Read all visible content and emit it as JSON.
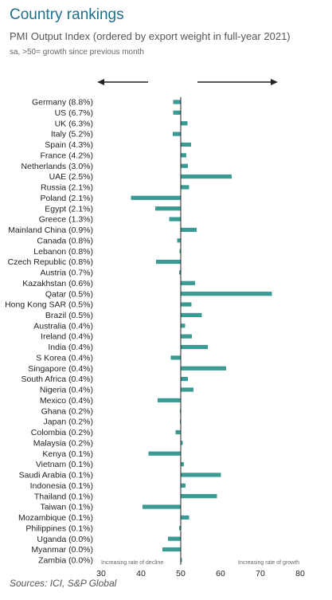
{
  "header": {
    "title": "Country rankings",
    "subtitle": "PMI Output Index (ordered by export weight in full-year 2021)",
    "note": "sa, >50= growth since previous month"
  },
  "footer": {
    "source": "Sources: ICI, S&P Global"
  },
  "colors": {
    "bar": "#3a9a94",
    "axis": "#222222",
    "title": "#1d6f8c"
  },
  "chart_data": {
    "type": "bar",
    "orientation": "horizontal",
    "baseline": 50,
    "xlim": [
      30,
      80
    ],
    "xticks": [
      "30",
      "40",
      "50",
      "60",
      "70",
      "80"
    ],
    "annotations": {
      "left": "Increasing rate of decline",
      "right": "Increasing rate of growth"
    },
    "categories": [
      "Germany (8.8%)",
      "US (6.7%)",
      "UK (6.3%)",
      "Italy (5.2%)",
      "Spain (4.3%)",
      "France (4.2%)",
      "Netherlands (3.0%)",
      "UAE (2.5%)",
      "Russia (2.1%)",
      "Poland (2.1%)",
      "Egypt (2.1%)",
      "Greece (1.3%)",
      "Mainland China (0.9%)",
      "Canada (0.8%)",
      "Lebanon (0.8%)",
      "Czech Republic (0.8%)",
      "Austria (0.7%)",
      "Kazakhstan (0.6%)",
      "Qatar (0.5%)",
      "Hong Kong SAR (0.5%)",
      "Brazil (0.5%)",
      "Australia (0.4%)",
      "Ireland (0.4%)",
      "India (0.4%)",
      "S Korea (0.4%)",
      "Singapore (0.4%)",
      "South Africa (0.4%)",
      "Nigeria (0.4%)",
      "Mexico (0.4%)",
      "Ghana (0.2%)",
      "Japan (0.2%)",
      "Colombia (0.2%)",
      "Malaysia (0.2%)",
      "Kenya (0.1%)",
      "Vietnam (0.1%)",
      "Saudi Arabia (0.1%)",
      "Indonesia (0.1%)",
      "Thailand (0.1%)",
      "Taiwan (0.1%)",
      "Mozambique (0.1%)",
      "Philippines (0.1%)",
      "Uganda (0.0%)",
      "Myanmar (0.0%)",
      "Zambia (0.0%)"
    ],
    "values": [
      48.1,
      48.1,
      51.7,
      48.0,
      52.6,
      51.4,
      51.8,
      62.8,
      52.1,
      37.5,
      43.6,
      47.1,
      54.0,
      49.1,
      49.7,
      43.8,
      49.6,
      53.6,
      72.9,
      52.7,
      55.3,
      51.1,
      52.8,
      56.8,
      47.5,
      61.4,
      51.8,
      53.2,
      44.2,
      49.8,
      49.8,
      48.7,
      50.5,
      41.9,
      50.8,
      60.1,
      51.2,
      59.1,
      40.4,
      52.1,
      49.6,
      46.8,
      45.4,
      50.3
    ]
  }
}
